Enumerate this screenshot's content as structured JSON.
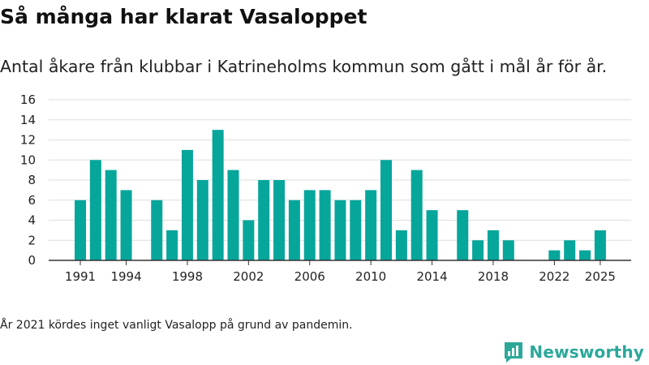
{
  "chart_data": {
    "type": "bar",
    "title": "Så många har klarat Vasaloppet",
    "subtitle": "Antal åkare från klubbar i Katrineholms kommun som gått i mål år för år.",
    "xlabel": "",
    "ylabel": "",
    "ylim": [
      0,
      16
    ],
    "yticks": [
      "0",
      "2",
      "4",
      "6",
      "8",
      "10",
      "12",
      "14",
      "16"
    ],
    "xticks": [
      "1991",
      "1994",
      "1998",
      "2002",
      "2006",
      "2010",
      "2014",
      "2018",
      "2022",
      "2025"
    ],
    "grid": true,
    "categories": [
      "1991",
      "1992",
      "1993",
      "1994",
      "1995",
      "1996",
      "1997",
      "1998",
      "1999",
      "2000",
      "2001",
      "2002",
      "2003",
      "2004",
      "2005",
      "2006",
      "2007",
      "2008",
      "2009",
      "2010",
      "2011",
      "2012",
      "2013",
      "2014",
      "2015",
      "2016",
      "2017",
      "2018",
      "2019",
      "2020",
      "2021",
      "2022",
      "2023",
      "2024",
      "2025"
    ],
    "values": [
      6,
      10,
      9,
      7,
      0,
      6,
      3,
      11,
      8,
      13,
      9,
      4,
      8,
      8,
      6,
      7,
      7,
      6,
      6,
      7,
      10,
      3,
      9,
      5,
      0,
      5,
      2,
      3,
      2,
      0,
      0,
      1,
      2,
      1,
      3
    ],
    "colors": {
      "bar": "#06a69b",
      "grid": "#dddddd",
      "axis": "#333333"
    }
  },
  "footnote": "År 2021 kördes inget vanligt Vasalopp på grund av pandemin.",
  "brand": {
    "name": "Newsworthy",
    "logo_icon": "newsworthy-logo-icon",
    "color": "#2ba89a"
  }
}
